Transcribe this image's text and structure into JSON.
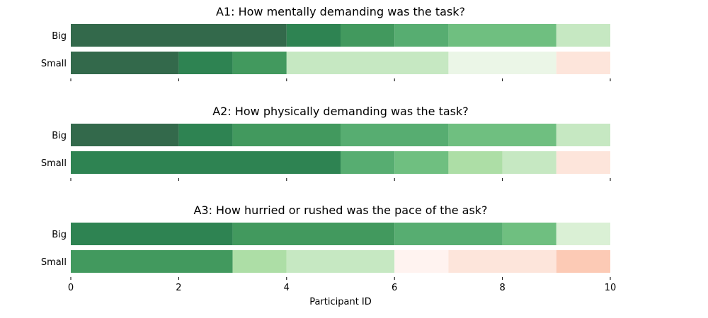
{
  "chart_data": [
    {
      "type": "bar",
      "orientation": "horizontal-stacked",
      "title": "A1: How mentally demanding was the task?",
      "categories": [
        "Big",
        "Small"
      ],
      "xlim": [
        0,
        10
      ],
      "rows": [
        {
          "category": "Big",
          "segments": [
            {
              "start": 0,
              "end": 4,
              "color": "#33694b"
            },
            {
              "start": 4,
              "end": 5,
              "color": "#2e8352"
            },
            {
              "start": 5,
              "end": 6,
              "color": "#42995e"
            },
            {
              "start": 6,
              "end": 7,
              "color": "#57ad71"
            },
            {
              "start": 7,
              "end": 9,
              "color": "#6fbf80"
            },
            {
              "start": 9,
              "end": 10,
              "color": "#c6e8c2"
            }
          ]
        },
        {
          "category": "Small",
          "segments": [
            {
              "start": 0,
              "end": 2,
              "color": "#33694b"
            },
            {
              "start": 2,
              "end": 3,
              "color": "#2e8352"
            },
            {
              "start": 3,
              "end": 4,
              "color": "#42995e"
            },
            {
              "start": 4,
              "end": 7,
              "color": "#c6e8c2"
            },
            {
              "start": 7,
              "end": 9,
              "color": "#ebf6e7"
            },
            {
              "start": 9,
              "end": 10,
              "color": "#fde5db"
            }
          ]
        }
      ]
    },
    {
      "type": "bar",
      "orientation": "horizontal-stacked",
      "title": "A2: How physically demanding was the task?",
      "categories": [
        "Big",
        "Small"
      ],
      "xlim": [
        0,
        10
      ],
      "rows": [
        {
          "category": "Big",
          "segments": [
            {
              "start": 0,
              "end": 2,
              "color": "#33694b"
            },
            {
              "start": 2,
              "end": 3,
              "color": "#2e8352"
            },
            {
              "start": 3,
              "end": 5,
              "color": "#42995e"
            },
            {
              "start": 5,
              "end": 7,
              "color": "#57ad71"
            },
            {
              "start": 7,
              "end": 9,
              "color": "#6fbf80"
            },
            {
              "start": 9,
              "end": 10,
              "color": "#c6e8c2"
            }
          ]
        },
        {
          "category": "Small",
          "segments": [
            {
              "start": 0,
              "end": 5,
              "color": "#2e8352"
            },
            {
              "start": 5,
              "end": 6,
              "color": "#57ad71"
            },
            {
              "start": 6,
              "end": 7,
              "color": "#6fbf80"
            },
            {
              "start": 7,
              "end": 8,
              "color": "#addea6"
            },
            {
              "start": 8,
              "end": 9,
              "color": "#c6e8c2"
            },
            {
              "start": 9,
              "end": 10,
              "color": "#fde5db"
            }
          ]
        }
      ]
    },
    {
      "type": "bar",
      "orientation": "horizontal-stacked",
      "title": "A3: How hurried or rushed was the pace of the ask?",
      "categories": [
        "Big",
        "Small"
      ],
      "xlim": [
        0,
        10
      ],
      "xlabel": "Participant ID",
      "xticks": [
        "0",
        "2",
        "4",
        "6",
        "8",
        "10"
      ],
      "rows": [
        {
          "category": "Big",
          "segments": [
            {
              "start": 0,
              "end": 3,
              "color": "#2e8352"
            },
            {
              "start": 3,
              "end": 6,
              "color": "#42995e"
            },
            {
              "start": 6,
              "end": 8,
              "color": "#57ad71"
            },
            {
              "start": 8,
              "end": 9,
              "color": "#6fbf80"
            },
            {
              "start": 9,
              "end": 10,
              "color": "#daf0d5"
            }
          ]
        },
        {
          "category": "Small",
          "segments": [
            {
              "start": 0,
              "end": 3,
              "color": "#42995e"
            },
            {
              "start": 3,
              "end": 4,
              "color": "#addea6"
            },
            {
              "start": 4,
              "end": 6,
              "color": "#c6e8c2"
            },
            {
              "start": 6,
              "end": 7,
              "color": "#fff3f0"
            },
            {
              "start": 7,
              "end": 9,
              "color": "#fde5db"
            },
            {
              "start": 9,
              "end": 10,
              "color": "#fccab5"
            }
          ]
        }
      ]
    }
  ]
}
